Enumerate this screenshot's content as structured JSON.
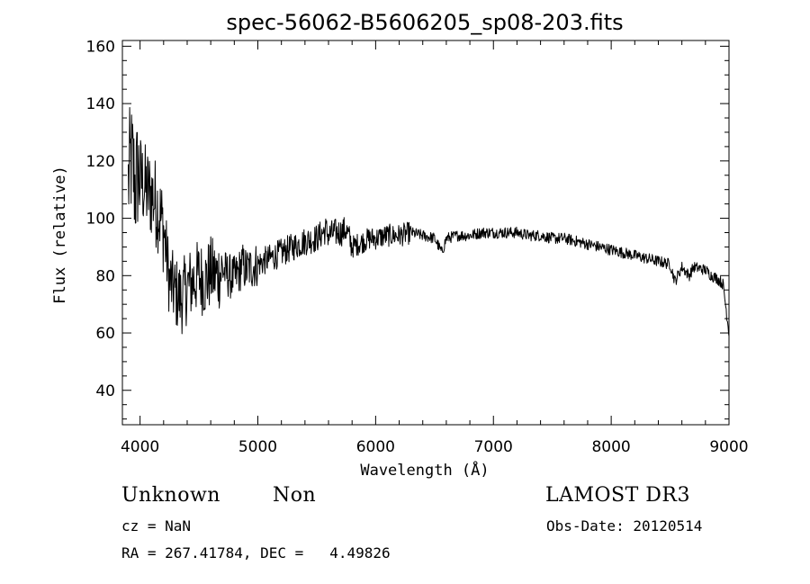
{
  "chart_data": {
    "type": "line",
    "title": "spec-56062-B5606205_sp08-203.fits",
    "xlabel": "Wavelength (Å)",
    "ylabel": "Flux (relative)",
    "xlim": [
      3850,
      9000
    ],
    "ylim": [
      28,
      162
    ],
    "xticks": [
      4000,
      5000,
      6000,
      7000,
      8000,
      9000
    ],
    "yticks": [
      40,
      60,
      80,
      100,
      120,
      140,
      160
    ],
    "grid": false,
    "series": [
      {
        "name": "flux",
        "x": [
          3900,
          3920,
          3940,
          3960,
          3980,
          4000,
          4050,
          4100,
          4150,
          4200,
          4250,
          4300,
          4350,
          4400,
          4450,
          4500,
          4550,
          4600,
          4650,
          4700,
          4750,
          4800,
          4850,
          4861,
          4900,
          5000,
          5100,
          5200,
          5300,
          5400,
          5500,
          5577,
          5600,
          5650,
          5700,
          5750,
          5800,
          5850,
          5900,
          5950,
          6000,
          6100,
          6200,
          6300,
          6400,
          6500,
          6563,
          6600,
          6700,
          6800,
          6900,
          7000,
          7100,
          7200,
          7300,
          7400,
          7500,
          7600,
          7700,
          7800,
          7900,
          8000,
          8100,
          8200,
          8300,
          8400,
          8500,
          8542,
          8600,
          8662,
          8700,
          8800,
          8850,
          8900,
          8950,
          9000
        ],
        "y": [
          112,
          120,
          118,
          110,
          116,
          114,
          110,
          108,
          104,
          96,
          78,
          74,
          72,
          76,
          78,
          80,
          78,
          81,
          80,
          82,
          80,
          79,
          82,
          84,
          82,
          84,
          86,
          88,
          90,
          92,
          93,
          96,
          94,
          95,
          95,
          96,
          90,
          91,
          92,
          93,
          93,
          94,
          94,
          95,
          94,
          93,
          88,
          93,
          94,
          94,
          95,
          95,
          95,
          95,
          94,
          94,
          93,
          93,
          92,
          91,
          90,
          89,
          88,
          87,
          86,
          85,
          84,
          78,
          83,
          80,
          83,
          82,
          80,
          79,
          77,
          60
        ]
      }
    ]
  },
  "info": {
    "object_class": "Unknown",
    "subclass": "Non",
    "survey": "LAMOST DR3",
    "redshift": "cz = NaN",
    "obs_date": "Obs-Date: 20120514",
    "coords": "RA = 267.41784, DEC =   4.49826"
  }
}
